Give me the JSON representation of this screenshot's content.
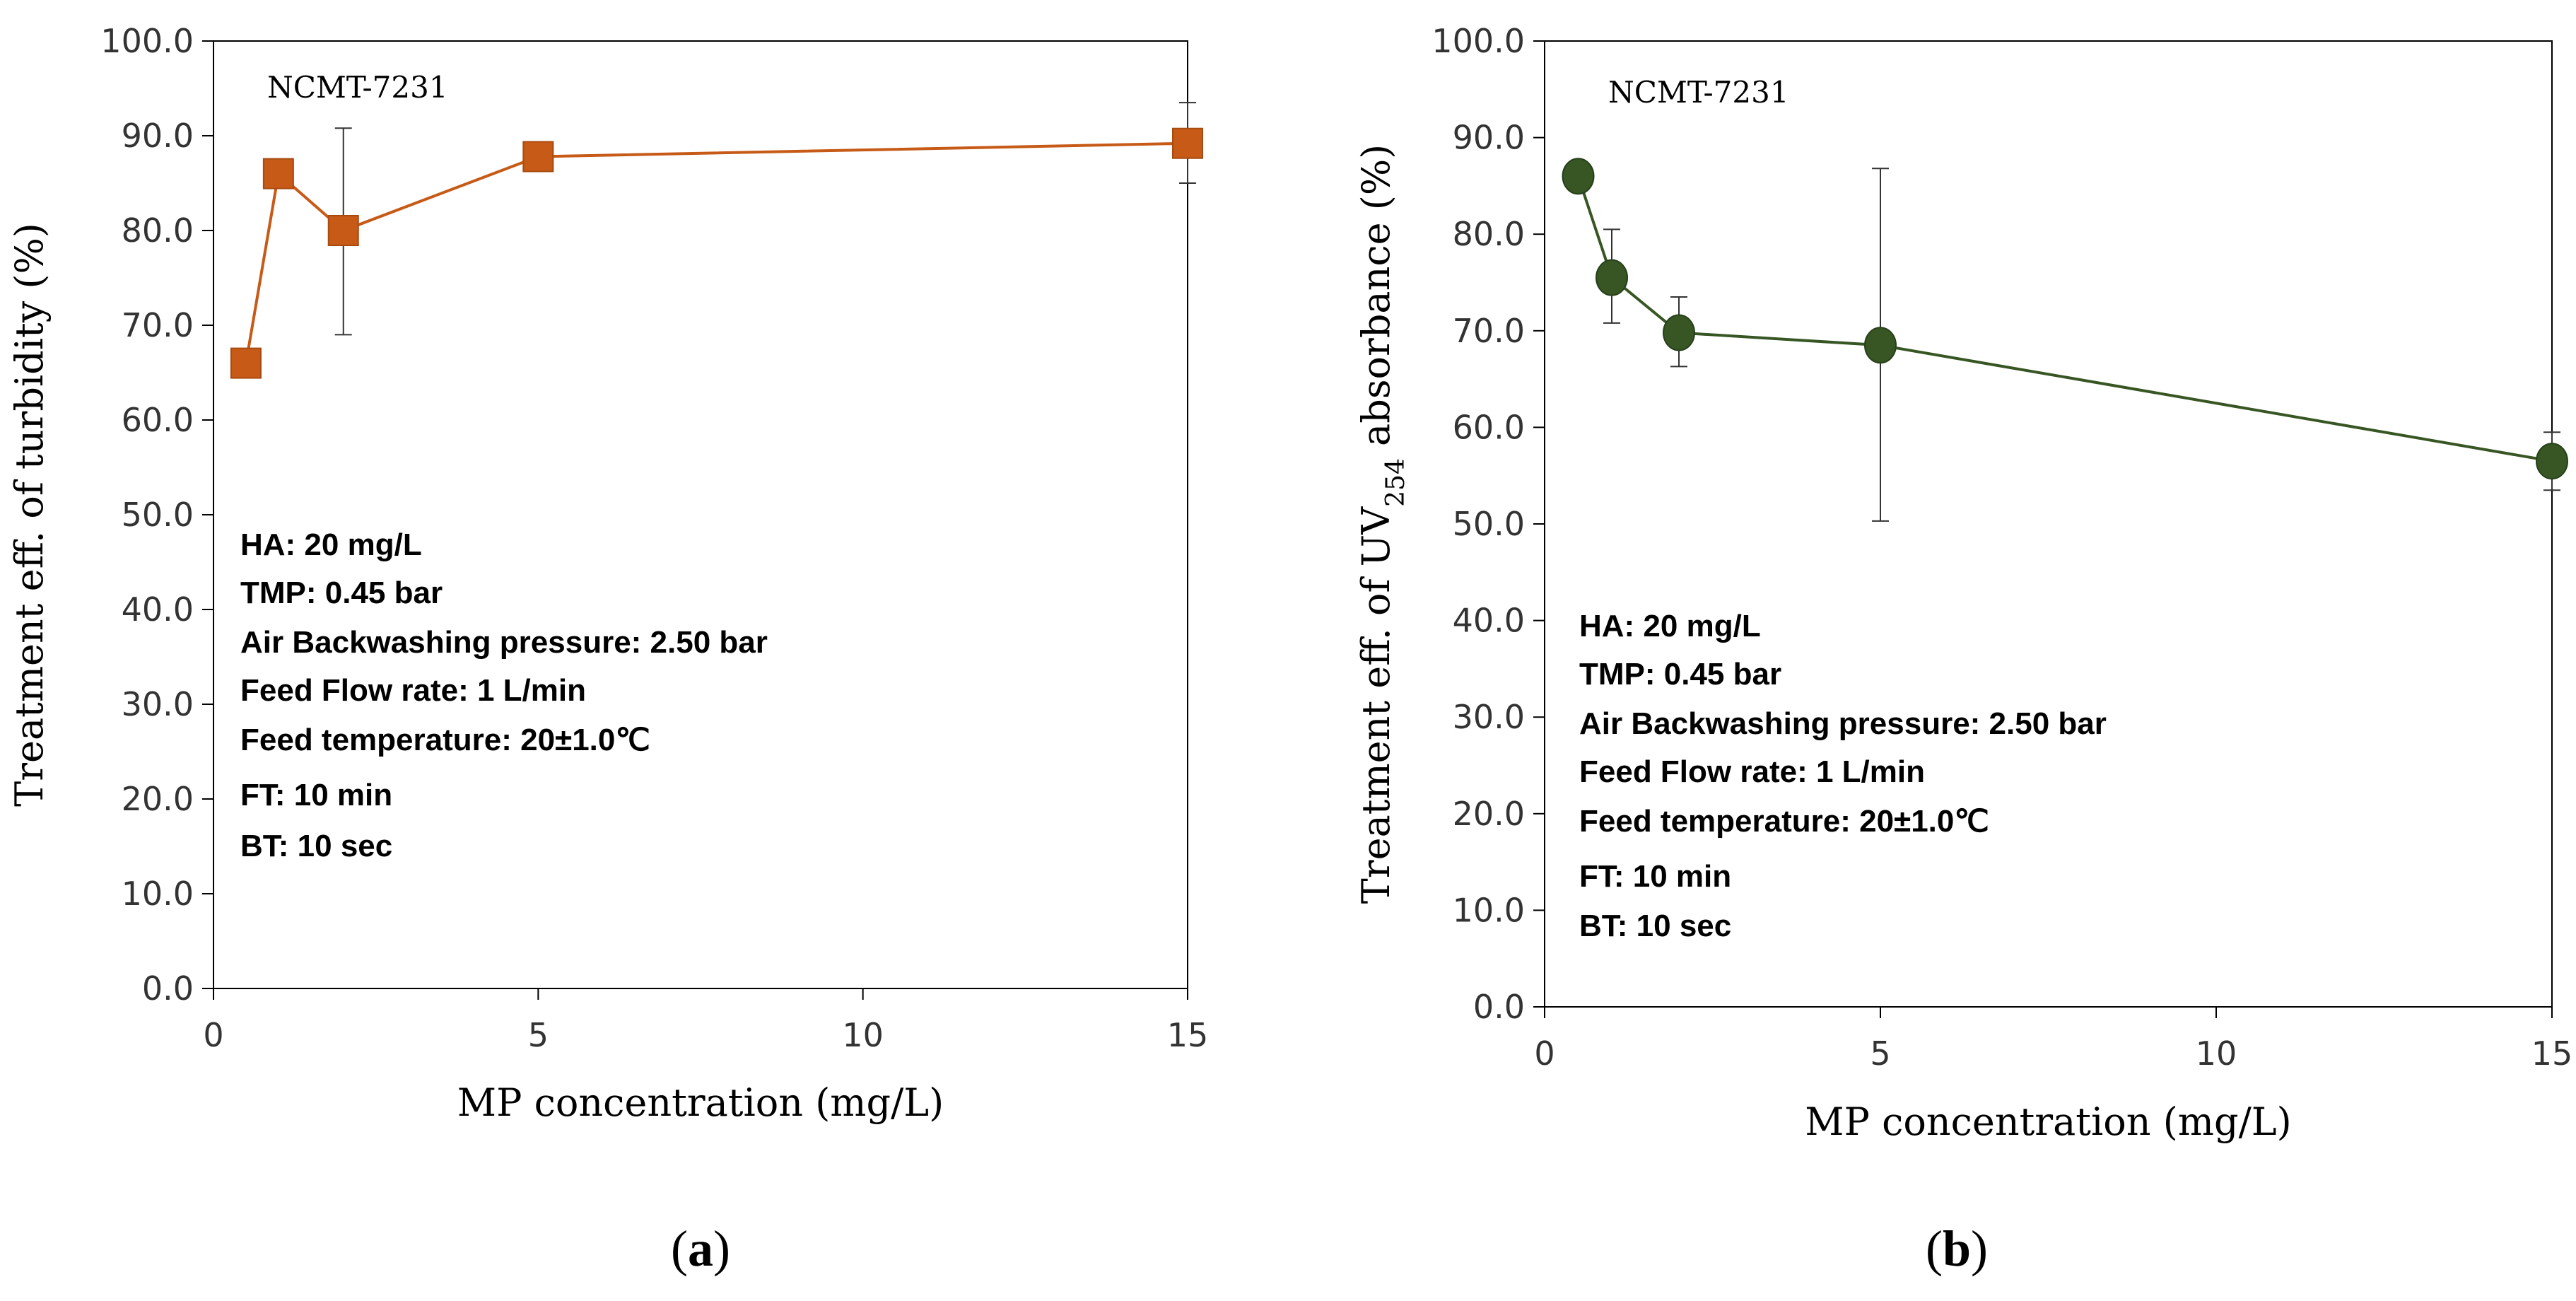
{
  "chart_data": [
    {
      "type": "line",
      "panel_label": "a",
      "title": "NCMT-7231",
      "xlabel": "MP concentration (mg/L)",
      "ylabel": "Treatment eff. of turbidity (%)",
      "xlim": [
        0,
        15
      ],
      "ylim": [
        0,
        100
      ],
      "x_ticks": [
        0,
        5,
        10,
        15
      ],
      "x_tick_labels": [
        "0",
        "5",
        "10",
        "15"
      ],
      "y_ticks": [
        0,
        10,
        20,
        30,
        40,
        50,
        60,
        70,
        80,
        90,
        100
      ],
      "y_tick_labels": [
        "0.0",
        "10.0",
        "20.0",
        "30.0",
        "40.0",
        "50.0",
        "60.0",
        "70.0",
        "80.0",
        "90.0",
        "100.0"
      ],
      "series": [
        {
          "name": "turbidity",
          "color": "#c65a16",
          "marker": "square",
          "x": [
            0.5,
            1,
            2,
            5,
            15
          ],
          "y": [
            66.0,
            86.0,
            80.0,
            87.8,
            89.2
          ],
          "error_low": [
            null,
            null,
            69.0,
            null,
            85.0
          ],
          "error_high": [
            null,
            null,
            90.8,
            null,
            93.5
          ]
        }
      ],
      "annotations": [
        "HA: 20 mg/L",
        "TMP: 0.45 bar",
        "Air Backwashing pressure: 2.50 bar",
        "Feed Flow rate: 1 L/min",
        "Feed temperature: 20±1.0℃",
        "FT: 10 min",
        "BT: 10 sec"
      ]
    },
    {
      "type": "line",
      "panel_label": "b",
      "title": "NCMT-7231",
      "xlabel": "MP concentration (mg/L)",
      "ylabel_parts": [
        "Treatment eff. of UV",
        "254",
        " absorbance (%)"
      ],
      "xlim": [
        0,
        15
      ],
      "ylim": [
        0,
        100
      ],
      "x_ticks": [
        0,
        5,
        10,
        15
      ],
      "x_tick_labels": [
        "0",
        "5",
        "10",
        "15"
      ],
      "y_ticks": [
        0,
        10,
        20,
        30,
        40,
        50,
        60,
        70,
        80,
        90,
        100
      ],
      "y_tick_labels": [
        "0.0",
        "10.0",
        "20.0",
        "30.0",
        "40.0",
        "50.0",
        "60.0",
        "70.0",
        "80.0",
        "90.0",
        "100.0"
      ],
      "series": [
        {
          "name": "UV254 absorbance",
          "color": "#375623",
          "marker": "circle",
          "x": [
            0.5,
            1,
            2,
            5,
            15
          ],
          "y": [
            86.0,
            75.5,
            69.8,
            68.5,
            56.5
          ],
          "error_low": [
            null,
            70.8,
            66.3,
            50.3,
            53.5
          ],
          "error_high": [
            null,
            80.5,
            73.5,
            86.8,
            59.5
          ]
        }
      ],
      "annotations": [
        "HA: 20 mg/L",
        "TMP: 0.45 bar",
        "Air Backwashing pressure: 2.50 bar",
        "Feed Flow rate: 1 L/min",
        "Feed temperature: 20±1.0℃",
        "FT: 10 min",
        "BT: 10 sec"
      ]
    }
  ]
}
